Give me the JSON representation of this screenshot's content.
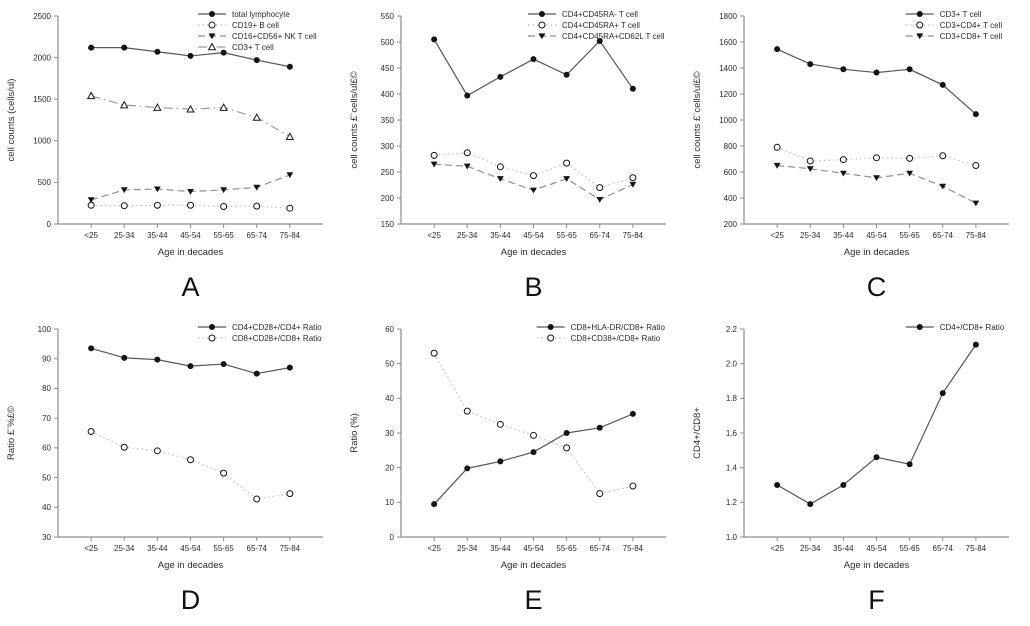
{
  "style": {
    "background": "#ffffff",
    "axis_color": "#8c8c8c",
    "text_color": "#2b2b2b",
    "marker_color": "#141414",
    "panel_letter_color": "#111111",
    "line_colors": {
      "solid": "#565656",
      "dotted": "#bcbcbc",
      "dashed": "#8f8f8f",
      "dashdot": "#9a9a9a"
    }
  },
  "chart_data": [
    {
      "panel": "A",
      "type": "line",
      "xlabel": "Age in decades",
      "ylabel": "cell counts (cells/ul)",
      "ylim": [
        0,
        2500
      ],
      "ytick_step": 500,
      "grid": false,
      "legend_position": "top-right",
      "categories": [
        "<25",
        "25-34",
        "35-44",
        "45-54",
        "55-65",
        "65-74",
        "75-84"
      ],
      "series": [
        {
          "name": "total lymphocyte",
          "marker": "filled-circle",
          "line": "solid",
          "values": [
            2120,
            2120,
            2070,
            2020,
            2060,
            1970,
            1890
          ]
        },
        {
          "name": "CD19+ B cell",
          "marker": "open-circle",
          "line": "dotted",
          "values": [
            225,
            220,
            225,
            225,
            210,
            215,
            190
          ]
        },
        {
          "name": "CD16+CD56+ NK T cell",
          "marker": "filled-triangle-down",
          "line": "dashed",
          "values": [
            290,
            410,
            420,
            390,
            410,
            440,
            590
          ]
        },
        {
          "name": "CD3+ T cell",
          "marker": "open-triangle-up",
          "line": "dashdot",
          "values": [
            1540,
            1430,
            1400,
            1380,
            1400,
            1280,
            1050
          ]
        }
      ]
    },
    {
      "panel": "B",
      "type": "line",
      "xlabel": "Age in decades",
      "ylabel": "cell counts £¨cells/ul£©",
      "ylim": [
        150,
        550
      ],
      "ytick_step": 50,
      "grid": false,
      "legend_position": "top-right",
      "categories": [
        "<25",
        "25-34",
        "35-44",
        "45-54",
        "55-65",
        "65-74",
        "75-84"
      ],
      "series": [
        {
          "name": "CD4+CD45RA- T cell",
          "marker": "filled-circle",
          "line": "solid",
          "values": [
            505,
            397,
            433,
            467,
            437,
            502,
            410
          ]
        },
        {
          "name": "CD4+CD45RA+ T cell",
          "marker": "open-circle",
          "line": "dotted",
          "values": [
            282,
            287,
            260,
            243,
            267,
            220,
            239
          ]
        },
        {
          "name": "CD4+CD45RA+CD62L T cell",
          "marker": "filled-triangle-down",
          "line": "dashed",
          "values": [
            265,
            261,
            237,
            215,
            237,
            197,
            226
          ]
        }
      ]
    },
    {
      "panel": "C",
      "type": "line",
      "xlabel": "Age in decades",
      "ylabel": "cell counts £¨cells/ul£©",
      "ylim": [
        200,
        1800
      ],
      "ytick_step": 200,
      "grid": false,
      "legend_position": "top-right",
      "categories": [
        "<25",
        "25-34",
        "35-44",
        "45-54",
        "55-65",
        "65-74",
        "75-84"
      ],
      "series": [
        {
          "name": "CD3+ T cell",
          "marker": "filled-circle",
          "line": "solid",
          "values": [
            1545,
            1430,
            1390,
            1365,
            1390,
            1270,
            1045
          ]
        },
        {
          "name": "CD3+CD4+ T cell",
          "marker": "open-circle",
          "line": "dotted",
          "values": [
            790,
            685,
            695,
            710,
            705,
            725,
            650
          ]
        },
        {
          "name": "CD3+CD8+ T cell",
          "marker": "filled-triangle-down",
          "line": "dashed",
          "values": [
            650,
            625,
            590,
            555,
            590,
            490,
            360
          ]
        }
      ]
    },
    {
      "panel": "D",
      "type": "line",
      "xlabel": "Age in decades",
      "ylabel": "Ratio £¨%£©",
      "ylim": [
        30,
        100
      ],
      "ytick_step": 10,
      "grid": false,
      "legend_position": "top-right",
      "categories": [
        "<25",
        "25-34",
        "35-44",
        "45-54",
        "55-65",
        "65-74",
        "75-84"
      ],
      "series": [
        {
          "name": "CD4+CD28+/CD4+ Ratio",
          "marker": "filled-circle",
          "line": "solid",
          "values": [
            93.5,
            90.3,
            89.7,
            87.5,
            88.2,
            85.0,
            87.0
          ]
        },
        {
          "name": "CD8+CD28+/CD8+ Ratio",
          "marker": "open-circle",
          "line": "dotted",
          "values": [
            65.5,
            60.2,
            59.0,
            56.0,
            51.5,
            42.8,
            44.6
          ]
        }
      ]
    },
    {
      "panel": "E",
      "type": "line",
      "xlabel": "Age in decades",
      "ylabel": "Ratio (%)",
      "ylim": [
        0,
        60
      ],
      "ytick_step": 10,
      "grid": false,
      "legend_position": "top-right",
      "categories": [
        "<25",
        "25-34",
        "35-44",
        "45-54",
        "55-65",
        "65-74",
        "75-84"
      ],
      "series": [
        {
          "name": "CD8+HLA-DR/CD8+ Ratio",
          "marker": "filled-circle",
          "line": "solid",
          "values": [
            9.5,
            19.8,
            21.8,
            24.5,
            30.0,
            31.5,
            35.5
          ]
        },
        {
          "name": "CD8+CD38+/CD8+ Ratio",
          "marker": "open-circle",
          "line": "dotted",
          "values": [
            53.0,
            36.3,
            32.5,
            29.3,
            25.7,
            12.5,
            14.7
          ]
        }
      ]
    },
    {
      "panel": "F",
      "type": "line",
      "xlabel": "Age in decades",
      "ylabel": "CD4+/CD8+",
      "ylim": [
        1.0,
        2.2
      ],
      "ytick_step": 0.2,
      "grid": false,
      "legend_position": "top-right",
      "categories": [
        "<25",
        "25-34",
        "35-44",
        "45-54",
        "55-65",
        "65-74",
        "75-84"
      ],
      "series": [
        {
          "name": "CD4+/CD8+ Ratio",
          "marker": "filled-circle",
          "line": "solid",
          "values": [
            1.3,
            1.19,
            1.3,
            1.46,
            1.42,
            1.83,
            2.11
          ]
        }
      ]
    }
  ]
}
